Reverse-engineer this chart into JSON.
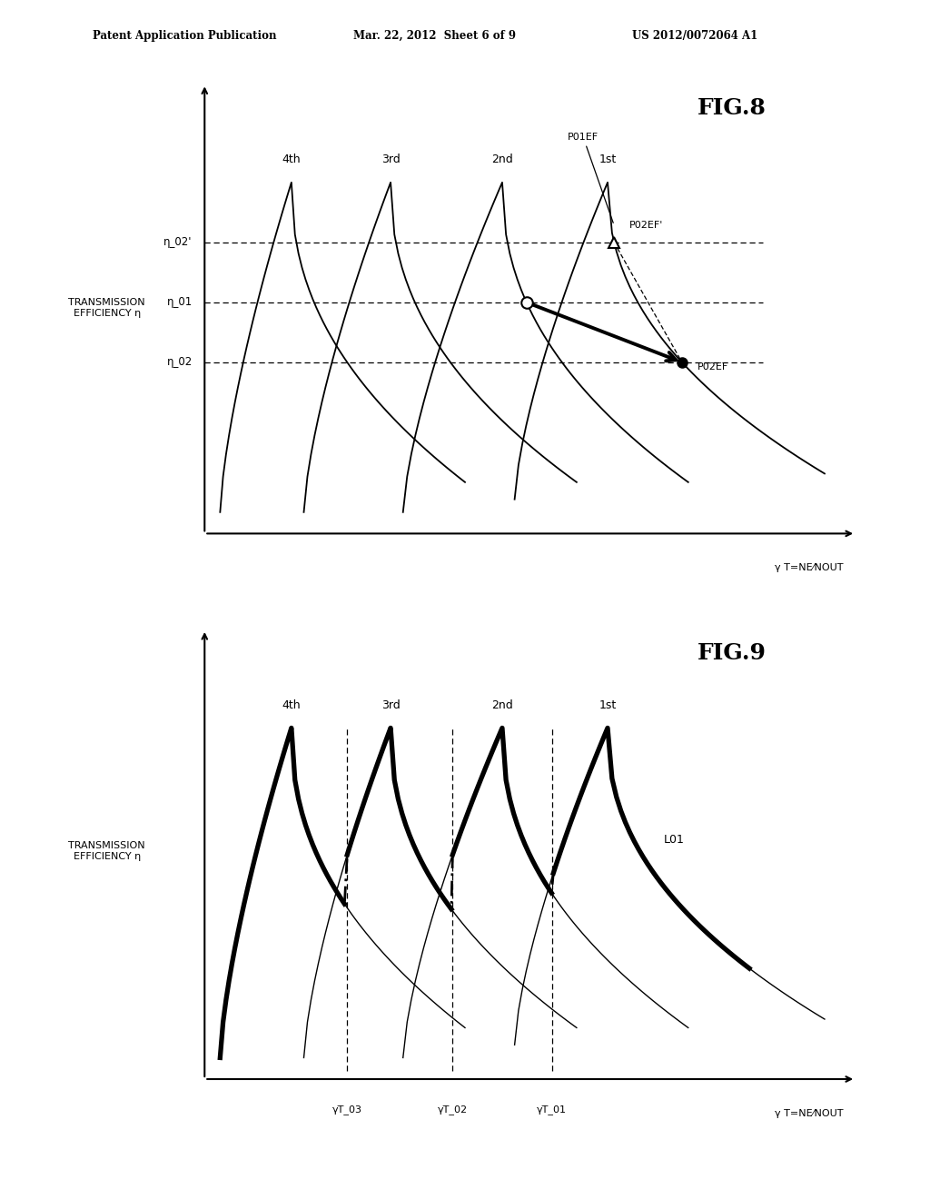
{
  "header_left": "Patent Application Publication",
  "header_mid": "Mar. 22, 2012  Sheet 6 of 9",
  "header_right": "US 2012/0072064 A1",
  "fig8_title": "FIG.8",
  "fig9_title": "FIG.9",
  "bg_color": "#ffffff",
  "ylabel": "TRANSMISSION\nEFFICIENCY η",
  "xlabel": "γ T=NE⁄NOUT",
  "xlabel9": "γ T=NE⁄NOUT",
  "gear_labels": [
    "4th",
    "3rd",
    "2nd",
    "1st"
  ],
  "eta_labels": [
    "η_02'",
    "η_01",
    "η_02"
  ],
  "eta_levels": [
    0.68,
    0.54,
    0.4
  ],
  "gamma_labels_9": [
    "γT_03",
    "γT_02",
    "γT_01"
  ],
  "L01_label": "L01"
}
